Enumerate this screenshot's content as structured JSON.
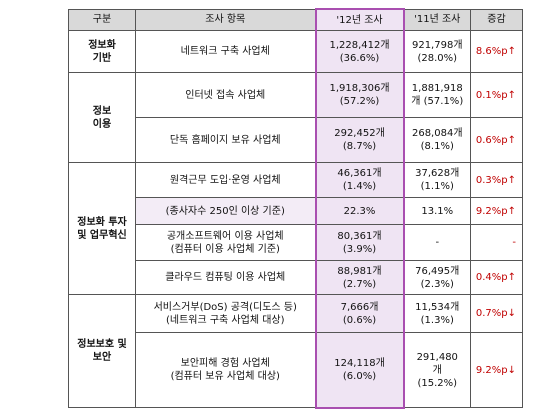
{
  "table": {
    "header": [
      "구분",
      "조사 항목",
      "'12년 조사",
      "'11년 조사",
      "증감"
    ],
    "groups": [
      {
        "label": [
          "정보화",
          "기반"
        ],
        "rows": [
          {
            "item": [
              "네트워크 구축 사업체"
            ],
            "y2012": [
              "1,228,412개",
              "(36.6%)"
            ],
            "y2011": [
              "921,798개",
              "(28.0%)"
            ],
            "change": "8.6%p↑"
          }
        ]
      },
      {
        "label": [
          "정보",
          "이용"
        ],
        "rows": [
          {
            "item": [
              "인터넷 접속 사업체"
            ],
            "y2012": [
              "1,918,306개",
              "(57.2%)"
            ],
            "y2011": [
              "1,881,918",
              "개 (57.1%)"
            ],
            "change": "0.1%p↑"
          },
          {
            "item": [
              "단독 홈페이지 보유 사업체"
            ],
            "y2012": [
              "292,452개",
              "(8.7%)"
            ],
            "y2011": [
              "268,084개",
              "(8.1%)"
            ],
            "change": "0.6%p↑"
          }
        ]
      },
      {
        "label": [
          "정보화 투자",
          "및 업무혁신"
        ],
        "rows": [
          {
            "item": [
              "원격근무 도입·운영 사업체"
            ],
            "y2012": [
              "46,361개",
              "(1.4%)"
            ],
            "y2011": [
              "37,628개",
              "(1.1%)"
            ],
            "change": "0.3%p↑"
          },
          {
            "item": [
              "(종사자수 250인 이상 기준)"
            ],
            "y2012": [
              "22.3%"
            ],
            "y2011": [
              "13.1%"
            ],
            "change": "9.2%p↑"
          },
          {
            "item": [
              "공개소프트웨어 이용 사업체",
              "(컴퓨터 이용 사업체 기준)"
            ],
            "y2012": [
              "80,361개",
              "(3.9%)"
            ],
            "y2011": [
              "-"
            ],
            "change": "-"
          },
          {
            "item": [
              "클라우드 컴퓨팅 이용 사업체"
            ],
            "y2012": [
              "88,981개",
              "(2.7%)"
            ],
            "y2011": [
              "76,495개",
              "(2.3%)"
            ],
            "change": "0.4%p↑"
          }
        ]
      },
      {
        "label": [
          "정보보호 및",
          "보안"
        ],
        "rows": [
          {
            "item": [
              "서비스거부(DoS) 공격(디도스 등)",
              "(네트워크 구축 사업체 대상)"
            ],
            "y2012": [
              "7,666개",
              "(0.6%)"
            ],
            "y2011": [
              "11,534개",
              "(1.3%)"
            ],
            "change": "0.7%p↓"
          },
          {
            "item": [
              "보안피해 경험 사업체",
              "(컴퓨터 보유 사업체 대상)"
            ],
            "y2012": [
              "124,118개",
              "(6.0%)"
            ],
            "y2011": [
              "291,480",
              "개",
              "(15.2%)"
            ],
            "change": "9.2%p↓"
          }
        ]
      }
    ]
  }
}
